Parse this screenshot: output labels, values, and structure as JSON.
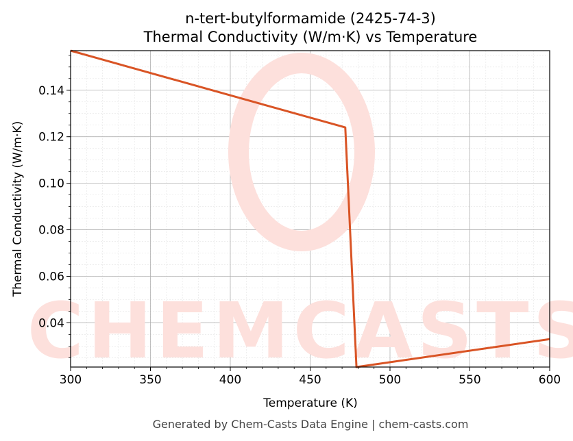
{
  "chart_data": {
    "type": "line",
    "title_line1": "n-tert-butylformamide (2425-74-3)",
    "title_line2": "Thermal Conductivity (W/m·K) vs Temperature",
    "xlabel": "Temperature (K)",
    "ylabel": "Thermal Conductivity (W/m·K)",
    "xlim": [
      300,
      600
    ],
    "ylim": [
      0.021,
      0.157
    ],
    "xticks": [
      300,
      350,
      400,
      450,
      500,
      550,
      600
    ],
    "yticks": [
      0.04,
      0.06,
      0.08,
      0.1,
      0.12,
      0.14
    ],
    "ytick_labels": [
      "0.04",
      "0.06",
      "0.08",
      "0.10",
      "0.12",
      "0.14"
    ],
    "grid": true,
    "series": [
      {
        "color": "#d95425",
        "points": [
          [
            300,
            0.157
          ],
          [
            472,
            0.124
          ],
          [
            479,
            0.021
          ],
          [
            600,
            0.033
          ]
        ]
      }
    ]
  },
  "watermark": {
    "text": "CHEMCASTS",
    "color": "#fde0dc"
  },
  "footer": "Generated by Chem-Casts Data Engine | chem-casts.com"
}
